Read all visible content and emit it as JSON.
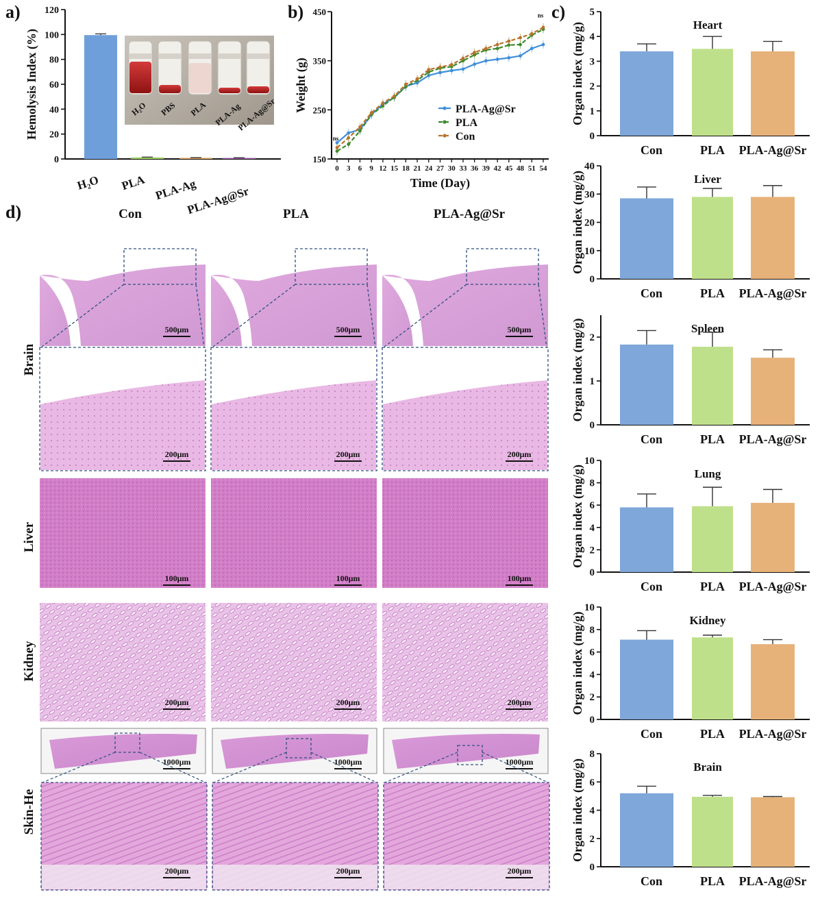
{
  "panels": {
    "a": "a)",
    "b": "b)",
    "c": "c)",
    "d": "d)"
  },
  "chart_data": [
    {
      "id": "a",
      "type": "bar",
      "ylabel": "Hemolysis Index (%)",
      "ylim": [
        0,
        120
      ],
      "yticks": [
        0,
        20,
        40,
        60,
        80,
        100,
        120
      ],
      "categories": [
        "H2O",
        "PLA",
        "PLA-Ag",
        "PLA-Ag@Sr"
      ],
      "values": [
        99.5,
        1.2,
        0.9,
        0.8
      ],
      "errors": [
        1.0,
        0.3,
        0.2,
        0.2
      ],
      "colors": [
        "#6f9fdb",
        "#9ccf5f",
        "#e0a55f",
        "#9a5aa8"
      ],
      "inset_labels": [
        "H₂O",
        "PBS",
        "PLA",
        "PLA-Ag",
        "PLA-Ag@Sr"
      ]
    },
    {
      "id": "b",
      "type": "line",
      "xlabel": "Time (Day)",
      "ylabel": "Weight (g)",
      "ylim": [
        150,
        450
      ],
      "yticks": [
        150,
        250,
        350,
        450
      ],
      "x": [
        0,
        3,
        6,
        9,
        12,
        15,
        18,
        21,
        24,
        27,
        30,
        33,
        36,
        39,
        42,
        45,
        48,
        51,
        54
      ],
      "annotations": [
        "ns",
        "ns"
      ],
      "series": [
        {
          "name": "PLA-Ag@Sr",
          "color": "#3f8fdc",
          "values": [
            183,
            203,
            210,
            240,
            262,
            275,
            298,
            305,
            320,
            326,
            330,
            333,
            343,
            350,
            353,
            356,
            360,
            375,
            383
          ]
        },
        {
          "name": "PLA",
          "color": "#3a8a2a",
          "values": [
            166,
            180,
            207,
            240,
            258,
            276,
            297,
            310,
            327,
            335,
            338,
            350,
            362,
            372,
            375,
            382,
            383,
            402,
            414
          ]
        },
        {
          "name": "Con",
          "color": "#b8742c",
          "values": [
            173,
            193,
            215,
            244,
            264,
            278,
            302,
            313,
            332,
            337,
            342,
            355,
            367,
            375,
            383,
            390,
            397,
            405,
            418
          ]
        }
      ]
    },
    {
      "id": "c",
      "type": "bar",
      "ylabel": "Organ index (mg/g)",
      "categories": [
        "Con",
        "PLA",
        "PLA-Ag@Sr"
      ],
      "colors": [
        "#7fa7d9",
        "#bfe08a",
        "#e6b27a"
      ],
      "subplots": [
        {
          "title": "Heart",
          "ylim": [
            0,
            5
          ],
          "yticks": [
            0,
            1,
            2,
            3,
            4,
            5
          ],
          "values": [
            3.4,
            3.5,
            3.4
          ],
          "errors": [
            0.3,
            0.5,
            0.4
          ]
        },
        {
          "title": "Liver",
          "ylim": [
            0,
            40
          ],
          "yticks": [
            0,
            10,
            20,
            30,
            40
          ],
          "values": [
            28.5,
            29,
            29
          ],
          "errors": [
            4,
            3,
            4
          ]
        },
        {
          "title": "Spleen",
          "ylim": [
            0,
            2.5
          ],
          "yticks": [
            0,
            1,
            2
          ],
          "values": [
            1.83,
            1.78,
            1.53
          ],
          "errors": [
            0.32,
            0.33,
            0.18
          ]
        },
        {
          "title": "Lung",
          "ylim": [
            0,
            10
          ],
          "yticks": [
            0,
            2,
            4,
            6,
            8,
            10
          ],
          "values": [
            5.8,
            5.9,
            6.2
          ],
          "errors": [
            1.2,
            1.7,
            1.2
          ]
        },
        {
          "title": "Kidney",
          "ylim": [
            0,
            10
          ],
          "yticks": [
            0,
            2,
            4,
            6,
            8,
            10
          ],
          "values": [
            7.1,
            7.3,
            6.7
          ],
          "errors": [
            0.8,
            0.2,
            0.4
          ]
        },
        {
          "title": "Brain",
          "ylim": [
            0,
            8
          ],
          "yticks": [
            0,
            2,
            4,
            6,
            8
          ],
          "values": [
            5.2,
            4.95,
            4.92
          ],
          "errors": [
            0.5,
            0.1,
            0.05
          ]
        }
      ]
    },
    {
      "id": "d",
      "type": "image-grid",
      "columns": [
        "Con",
        "PLA",
        "PLA-Ag@Sr"
      ],
      "rows": [
        "Brain",
        "Liver",
        "Kidney",
        "Skin-He"
      ],
      "scale_bars": {
        "brain_overview": "500μm",
        "brain_zoom": "200μm",
        "liver": "100μm",
        "kidney": "200μm",
        "skin_overview": "1000μm",
        "skin_zoom": "200μm"
      }
    }
  ]
}
